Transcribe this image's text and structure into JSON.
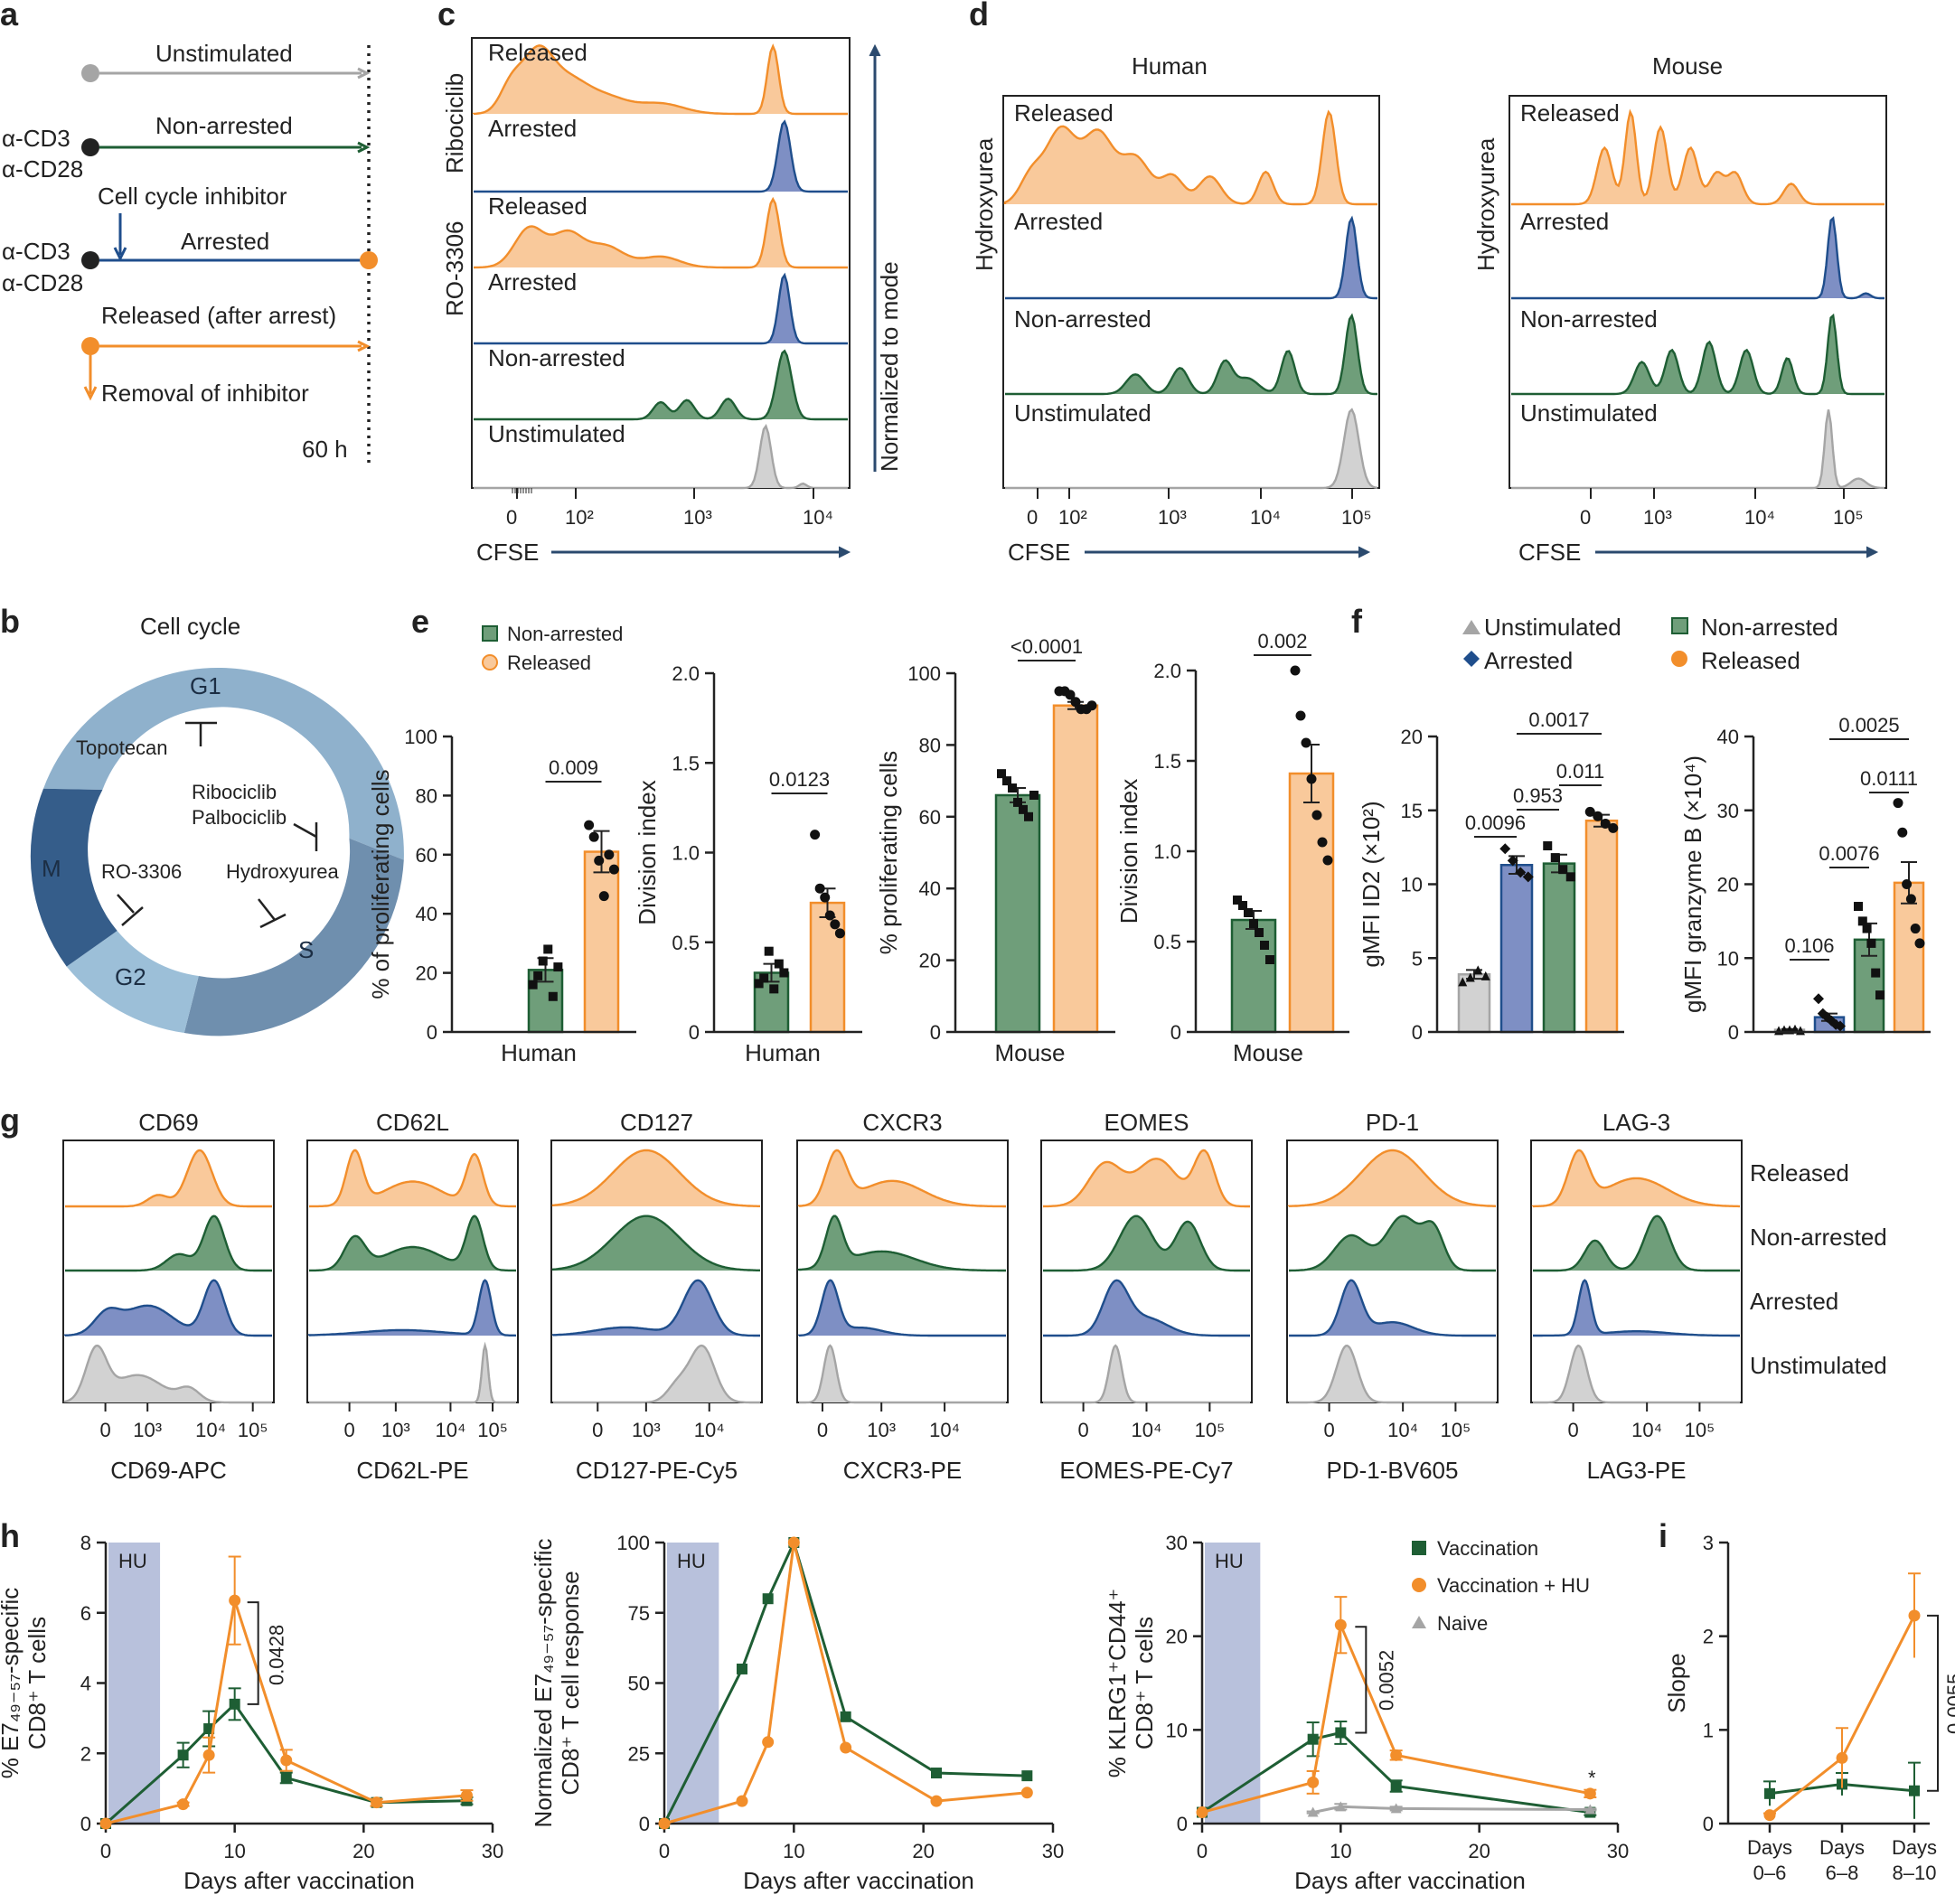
{
  "colors": {
    "orange": "#f28e2b",
    "orangeFill": "#f9c99b",
    "blue": "#1f4e8c",
    "blueFill": "#7e8fc4",
    "green": "#1e5e34",
    "greenFill": "#6f9e7a",
    "gray": "#a5a5a5",
    "grayFill": "#d2d2d2",
    "hu": "#b8c1dc",
    "navy": "#2b4a6e"
  },
  "panel_labels": [
    "a",
    "b",
    "c",
    "d",
    "e",
    "f",
    "g",
    "h",
    "i"
  ],
  "panel_a": {
    "rows": [
      "Unstimulated",
      "Non-arrested",
      "Arrested",
      "Released (after arrest)"
    ],
    "stim": [
      "α-CD3",
      "α-CD28"
    ],
    "inhibitor": "Cell cycle inhibitor",
    "removal": "Removal of inhibitor",
    "time": "60 h"
  },
  "panel_b": {
    "title": "Cell cycle",
    "phases": [
      "G1",
      "S",
      "G2",
      "M"
    ],
    "drugs": [
      "Topotecan",
      "Ribociclib",
      "Palbociclib",
      "RO-3306",
      "Hydroxyurea"
    ]
  },
  "panel_c": {
    "group_labels": [
      "Ribociclib",
      "RO-3306"
    ],
    "tracks": [
      "Released",
      "Arrested",
      "Released",
      "Arrested",
      "Non-arrested",
      "Unstimulated"
    ],
    "yaxis": "Normalized to mode",
    "xlabel": "CFSE",
    "ticks": [
      "0",
      "10²",
      "10³",
      "10⁴"
    ]
  },
  "panel_d": {
    "titles": [
      "Human",
      "Mouse"
    ],
    "side": "Hydroxyurea",
    "tracks": [
      "Released",
      "Arrested",
      "Non-arrested",
      "Unstimulated"
    ],
    "xlabel": "CFSE",
    "ticks": [
      "0",
      "10²",
      "10³",
      "10⁴",
      "10⁵"
    ],
    "ticks_mouse": [
      "0",
      "10³",
      "10⁴",
      "10⁵"
    ]
  },
  "chart_data": [
    {
      "id": "e1",
      "type": "bar",
      "ylabel": "% of proliferating cells",
      "xlabel": "Human",
      "ylim": [
        0,
        100
      ],
      "yticks": [
        "0",
        "20",
        "40",
        "60",
        "80",
        "100"
      ],
      "legend": [
        "Non-arrested",
        "Released"
      ],
      "series": [
        {
          "name": "Non-arrested",
          "value": 21,
          "err": 4,
          "points": [
            16,
            19,
            24,
            28,
            12,
            22
          ]
        },
        {
          "name": "Released",
          "value": 61,
          "err": 7,
          "points": [
            70,
            66,
            58,
            46,
            60,
            55
          ]
        }
      ],
      "pvalue": "0.009"
    },
    {
      "id": "e2",
      "type": "bar",
      "ylabel": "Division index",
      "xlabel": "Human",
      "ylim": [
        0,
        2
      ],
      "yticks": [
        "0",
        "0.5",
        "1.0",
        "1.5",
        "2.0"
      ],
      "series": [
        {
          "name": "Non-arrested",
          "value": 0.33,
          "err": 0.05,
          "points": [
            0.27,
            0.3,
            0.45,
            0.24,
            0.38,
            0.33
          ]
        },
        {
          "name": "Released",
          "value": 0.72,
          "err": 0.08,
          "points": [
            1.1,
            0.8,
            0.75,
            0.65,
            0.6,
            0.55
          ]
        }
      ],
      "pvalue": "0.0123"
    },
    {
      "id": "e3",
      "type": "bar",
      "ylabel": "% proliferating cells",
      "xlabel": "Mouse",
      "ylim": [
        0,
        100
      ],
      "yticks": [
        "0",
        "20",
        "40",
        "60",
        "80",
        "100"
      ],
      "series": [
        {
          "name": "Non-arrested",
          "value": 66,
          "err": 2,
          "points": [
            72,
            70,
            68,
            64,
            62,
            60,
            66
          ]
        },
        {
          "name": "Released",
          "value": 91,
          "err": 1,
          "points": [
            95,
            95,
            94,
            92,
            90,
            90,
            91
          ]
        }
      ],
      "pvalue": "<0.0001"
    },
    {
      "id": "e4",
      "type": "bar",
      "ylabel": "Division index",
      "xlabel": "Mouse",
      "ylim": [
        0,
        2
      ],
      "yticks": [
        "0",
        "0.5",
        "1.0",
        "1.5",
        "2.0"
      ],
      "series": [
        {
          "name": "Non-arrested",
          "value": 0.62,
          "err": 0.05,
          "points": [
            0.73,
            0.7,
            0.66,
            0.6,
            0.55,
            0.48,
            0.4
          ]
        },
        {
          "name": "Released",
          "value": 1.43,
          "err": 0.16,
          "points": [
            2.0,
            1.75,
            1.6,
            1.4,
            1.2,
            1.05,
            0.95
          ]
        }
      ],
      "pvalue": "0.002"
    },
    {
      "id": "f1",
      "type": "bar",
      "ylabel": "gMFI ID2 (×10²)",
      "ylim": [
        0,
        20
      ],
      "yticks": [
        "0",
        "5",
        "10",
        "15",
        "20"
      ],
      "legend": [
        "Unstimulated",
        "Arrested",
        "Non-arrested",
        "Released"
      ],
      "series": [
        {
          "name": "Unstimulated",
          "value": 3.9,
          "err": 0.3,
          "points": [
            3.4,
            3.7,
            4.2,
            3.8
          ]
        },
        {
          "name": "Arrested",
          "value": 11.3,
          "err": 0.6,
          "points": [
            12.4,
            11.6,
            10.8,
            10.5
          ]
        },
        {
          "name": "Non-arrested",
          "value": 11.4,
          "err": 0.6,
          "points": [
            12.6,
            11.8,
            11.0,
            10.5
          ]
        },
        {
          "name": "Released",
          "value": 14.3,
          "err": 0.4,
          "points": [
            14.9,
            14.6,
            14.1,
            13.8
          ]
        }
      ],
      "pvalues": [
        "0.0096",
        "0.953",
        "0.011",
        "0.0017"
      ]
    },
    {
      "id": "f2",
      "type": "bar",
      "ylabel": "gMFI granzyme B (×10⁴)",
      "ylim": [
        0,
        40
      ],
      "yticks": [
        "0",
        "10",
        "20",
        "30",
        "40"
      ],
      "series": [
        {
          "name": "Unstimulated",
          "value": 0.3,
          "err": 0.1,
          "points": [
            0.2,
            0.3,
            0.3,
            0.4,
            0.2
          ]
        },
        {
          "name": "Arrested",
          "value": 2.0,
          "err": 0.5,
          "points": [
            4.5,
            2.5,
            2.0,
            1.5,
            1.0,
            0.8
          ]
        },
        {
          "name": "Non-arrested",
          "value": 12.5,
          "err": 2.2,
          "points": [
            17,
            15,
            14,
            12,
            8,
            5
          ]
        },
        {
          "name": "Released",
          "value": 20.2,
          "err": 2.8,
          "points": [
            31,
            27,
            20,
            18,
            14,
            12
          ]
        }
      ],
      "pvalues": [
        "0.106",
        "0.0076",
        "0.0111",
        "0.0025"
      ]
    },
    {
      "id": "h1",
      "type": "line",
      "ylabel_lines": [
        "% E7₄₉₋₅₇-specific",
        "CD8⁺ T cells"
      ],
      "xlabel": "Days after vaccination",
      "xlim": [
        0,
        30
      ],
      "ylim": [
        0,
        8
      ],
      "xticks": [
        "0",
        "10",
        "20",
        "30"
      ],
      "yticks": [
        "0",
        "2",
        "4",
        "6",
        "8"
      ],
      "shade": [
        0,
        4
      ],
      "shade_label": "HU",
      "series": [
        {
          "name": "Vaccination",
          "x": [
            0,
            6,
            8,
            10,
            14,
            21,
            28
          ],
          "y": [
            0,
            1.95,
            2.7,
            3.4,
            1.3,
            0.6,
            0.65
          ],
          "err": [
            0,
            0.35,
            0.5,
            0.45,
            0.15,
            0.1,
            0.1
          ]
        },
        {
          "name": "Vaccination + HU",
          "x": [
            0,
            6,
            8,
            10,
            14,
            21,
            28
          ],
          "y": [
            0,
            0.55,
            1.95,
            6.35,
            1.8,
            0.6,
            0.8
          ],
          "err": [
            0,
            0.05,
            0.5,
            1.25,
            0.3,
            0.1,
            0.15
          ]
        }
      ],
      "pvalue": "0.0428"
    },
    {
      "id": "h2",
      "type": "line",
      "ylabel_lines": [
        "Normalized E7₄₉₋₅₇-specific",
        "CD8⁺ T cell response"
      ],
      "xlabel": "Days after vaccination",
      "xlim": [
        0,
        30
      ],
      "ylim": [
        0,
        100
      ],
      "xticks": [
        "0",
        "10",
        "20",
        "30"
      ],
      "yticks": [
        "0",
        "25",
        "50",
        "75",
        "100"
      ],
      "shade": [
        0,
        4
      ],
      "shade_label": "HU",
      "series": [
        {
          "name": "Vaccination",
          "x": [
            0,
            6,
            8,
            10,
            14,
            21,
            28
          ],
          "y": [
            0,
            55,
            80,
            100,
            38,
            18,
            17
          ]
        },
        {
          "name": "Vaccination + HU",
          "x": [
            0,
            6,
            8,
            10,
            14,
            21,
            28
          ],
          "y": [
            0,
            8,
            29,
            100,
            27,
            8,
            11
          ]
        }
      ]
    },
    {
      "id": "h3",
      "type": "line",
      "ylabel_lines": [
        "% KLRG1⁺CD44⁺",
        "CD8⁺ T cells"
      ],
      "xlabel": "Days after vaccination",
      "xlim": [
        0,
        30
      ],
      "ylim": [
        0,
        30
      ],
      "xticks": [
        "0",
        "10",
        "20",
        "30"
      ],
      "yticks": [
        "0",
        "10",
        "20",
        "30"
      ],
      "shade": [
        0,
        4
      ],
      "shade_label": "HU",
      "legend": [
        "Vaccination",
        "Vaccination + HU",
        "Naive"
      ],
      "series": [
        {
          "name": "Vaccination",
          "x": [
            0,
            8,
            10,
            14,
            28
          ],
          "y": [
            1.2,
            9,
            9.7,
            4,
            1.2
          ],
          "err": [
            0,
            1.8,
            1.2,
            0.6,
            0.3
          ]
        },
        {
          "name": "Vaccination + HU",
          "x": [
            0,
            8,
            10,
            14,
            28
          ],
          "y": [
            1.2,
            4.4,
            21.2,
            7.3,
            3.2
          ],
          "err": [
            0,
            1.2,
            3,
            0.5,
            0.4
          ]
        },
        {
          "name": "Naive",
          "x": [
            8,
            10,
            14,
            28
          ],
          "y": [
            1.2,
            1.8,
            1.6,
            1.5
          ],
          "err": [
            0.1,
            0.3,
            0.2,
            0.1
          ]
        }
      ],
      "pvalue": "0.0052",
      "star": "*"
    },
    {
      "id": "i",
      "type": "line",
      "ylabel": "Slope",
      "ylim": [
        0,
        3
      ],
      "yticks": [
        "0",
        "1",
        "2",
        "3"
      ],
      "categories": [
        "Days 0–6",
        "Days 6–8",
        "Days 8–10"
      ],
      "series": [
        {
          "name": "Vaccination",
          "y": [
            0.32,
            0.42,
            0.35
          ],
          "err": [
            0.13,
            0.12,
            0.3
          ]
        },
        {
          "name": "Vaccination + HU",
          "y": [
            0.09,
            0.7,
            2.22
          ],
          "err": [
            0.02,
            0.32,
            0.45
          ]
        }
      ],
      "pvalue": "0.0055"
    }
  ],
  "panel_g": {
    "markers": [
      "CD69",
      "CD62L",
      "CD127",
      "CXCR3",
      "EOMES",
      "PD-1",
      "LAG-3"
    ],
    "xlabels": [
      "CD69-APC",
      "CD62L-PE",
      "CD127-PE-Cy5",
      "CXCR3-PE",
      "EOMES-PE-Cy7",
      "PD-1-BV605",
      "LAG3-PE"
    ],
    "tracks": [
      "Released",
      "Non-arrested",
      "Arrested",
      "Unstimulated"
    ],
    "ticks": [
      [
        "0",
        "10³",
        "10⁴",
        "10⁵"
      ],
      [
        "0",
        "10³",
        "10⁴",
        "10⁵"
      ],
      [
        "0",
        "10³",
        "10⁴"
      ],
      [
        "0",
        "10³",
        "10⁴"
      ],
      [
        "0",
        "10⁴",
        "10⁵"
      ],
      [
        "0",
        "10⁴",
        "10⁵"
      ],
      [
        "0",
        "10⁴",
        "10⁵"
      ]
    ]
  }
}
